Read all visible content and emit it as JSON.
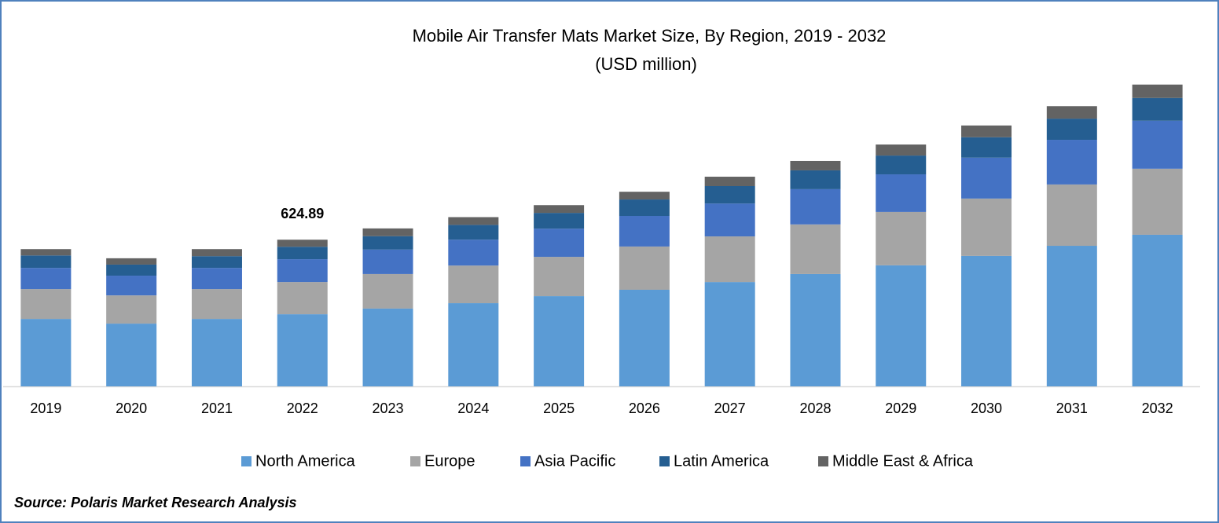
{
  "chart_data": {
    "type": "stacked-bar",
    "title": "Mobile Air Transfer Mats  Market Size, By Region, 2019 - 2032",
    "subtitle": "(USD million)",
    "categories": [
      "2019",
      "2020",
      "2021",
      "2022",
      "2023",
      "2024",
      "2025",
      "2026",
      "2027",
      "2028",
      "2029",
      "2030",
      "2031",
      "2032"
    ],
    "series": [
      {
        "name": "North America",
        "color": "#5b9bd5",
        "values": [
          287,
          267,
          287,
          307,
          331,
          354,
          384,
          411,
          444,
          478,
          515,
          555,
          598,
          645
        ]
      },
      {
        "name": "Europe",
        "color": "#a5a5a5",
        "values": [
          127,
          120,
          127,
          137,
          147,
          160,
          167,
          184,
          194,
          211,
          227,
          244,
          261,
          281
        ]
      },
      {
        "name": "Asia Pacific",
        "color": "#4472c4",
        "values": [
          90,
          84,
          90,
          97,
          104,
          110,
          120,
          130,
          140,
          150,
          160,
          174,
          190,
          204
        ]
      },
      {
        "name": "Latin America",
        "color": "#255e91",
        "values": [
          53,
          47,
          50,
          53,
          57,
          63,
          67,
          70,
          74,
          80,
          80,
          87,
          90,
          97
        ]
      },
      {
        "name": "Middle East & Africa",
        "color": "#636363",
        "values": [
          27,
          27,
          30,
          30,
          33,
          33,
          33,
          33,
          40,
          40,
          47,
          50,
          53,
          57
        ]
      }
    ],
    "annotation": {
      "category": "2022",
      "value": 624.89
    },
    "source": "Source: Polaris Market Research Analysis"
  }
}
